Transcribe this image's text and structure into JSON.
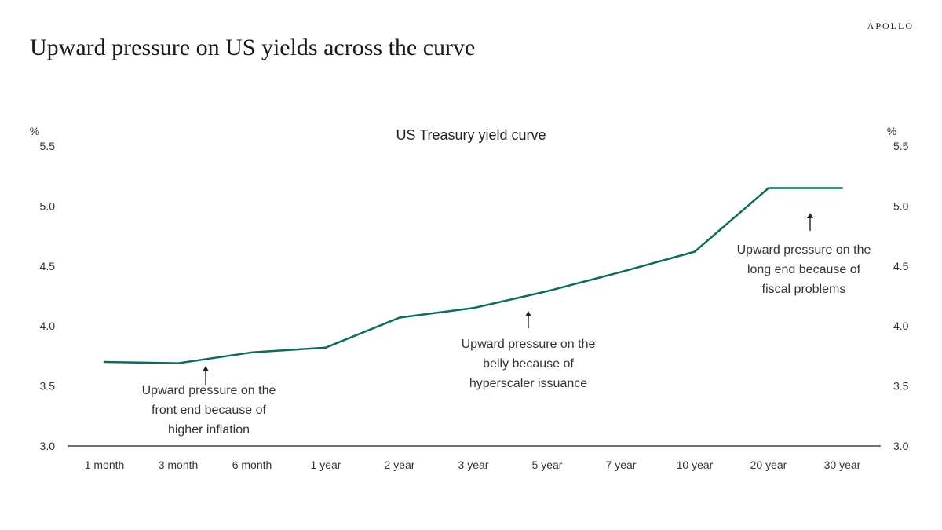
{
  "header": {
    "brand": "APOLLO",
    "title": "Upward pressure on US yields across the curve"
  },
  "chart_data": {
    "type": "line",
    "title": "US Treasury yield curve",
    "y_unit": "%",
    "x": [
      "1 month",
      "3 month",
      "6 month",
      "1 year",
      "2 year",
      "3 year",
      "5 year",
      "7 year",
      "10 year",
      "20 year",
      "30 year"
    ],
    "series": [
      {
        "values": [
          3.7,
          3.69,
          3.78,
          3.82,
          4.07,
          4.15,
          4.29,
          4.45,
          4.62,
          5.15,
          5.15
        ],
        "color": "#0f6b5c"
      }
    ],
    "ylim": [
      3.0,
      5.5
    ],
    "yticks": [
      "3.0",
      "3.5",
      "4.0",
      "4.5",
      "5.0",
      "5.5"
    ],
    "grid": false,
    "dual_y_axis": true,
    "annotations": [
      {
        "lines": [
          "Upward pressure on the",
          "front end because of",
          "higher inflation"
        ],
        "arrow_at": "3 month"
      },
      {
        "lines": [
          "Upward pressure on the",
          "belly because of",
          "hyperscaler issuance"
        ],
        "arrow_at": "3 year"
      },
      {
        "lines": [
          "Upward pressure on the",
          "long end because of",
          "fiscal problems"
        ],
        "arrow_at": "20 year"
      }
    ]
  }
}
